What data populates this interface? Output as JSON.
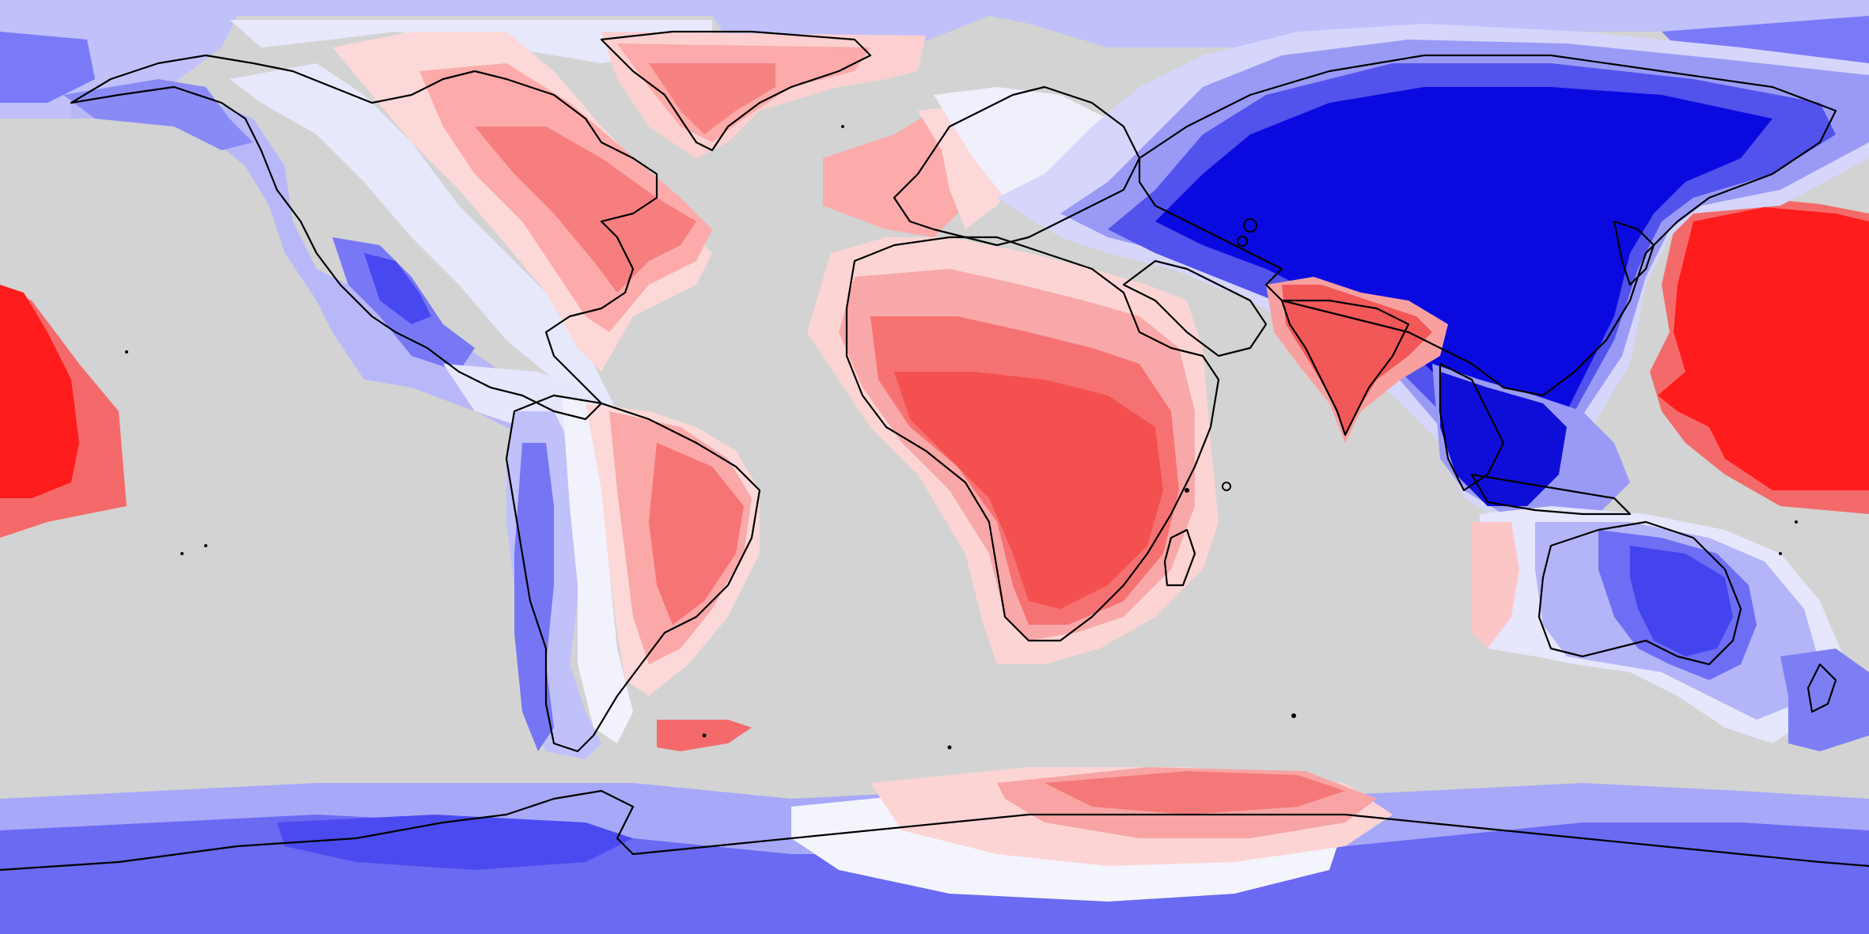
{
  "map": {
    "projection": "equirectangular",
    "background_color": "#d3d3d3",
    "coastline_color": "#000000",
    "palette": {
      "strong_blue": "#0000e0",
      "blue": "#3c3cf0",
      "medium_blue": "#6a6af8",
      "light_blue": "#a8a8f8",
      "pale_blue": "#e4e4fc",
      "white": "#fafaff",
      "pale_red": "#fcdcdc",
      "light_red": "#fcb0b0",
      "medium_red": "#f88484",
      "red": "#f45656",
      "strong_red": "#ff1c1c"
    },
    "regions": [
      {
        "name": "greenland",
        "sign": "positive"
      },
      {
        "name": "eastern-north-america",
        "sign": "positive"
      },
      {
        "name": "western-north-america",
        "sign": "negative"
      },
      {
        "name": "alaska",
        "sign": "negative"
      },
      {
        "name": "south-america-east",
        "sign": "positive"
      },
      {
        "name": "south-america-west",
        "sign": "negative"
      },
      {
        "name": "africa",
        "sign": "positive"
      },
      {
        "name": "india",
        "sign": "positive"
      },
      {
        "name": "eurasia",
        "sign": "negative"
      },
      {
        "name": "southeast-asia",
        "sign": "negative"
      },
      {
        "name": "australia",
        "sign": "negative"
      },
      {
        "name": "western-pacific",
        "sign": "positive"
      },
      {
        "name": "eastern-pacific",
        "sign": "positive"
      },
      {
        "name": "antarctica-west",
        "sign": "negative"
      },
      {
        "name": "antarctica-east-coast",
        "sign": "positive"
      }
    ]
  }
}
